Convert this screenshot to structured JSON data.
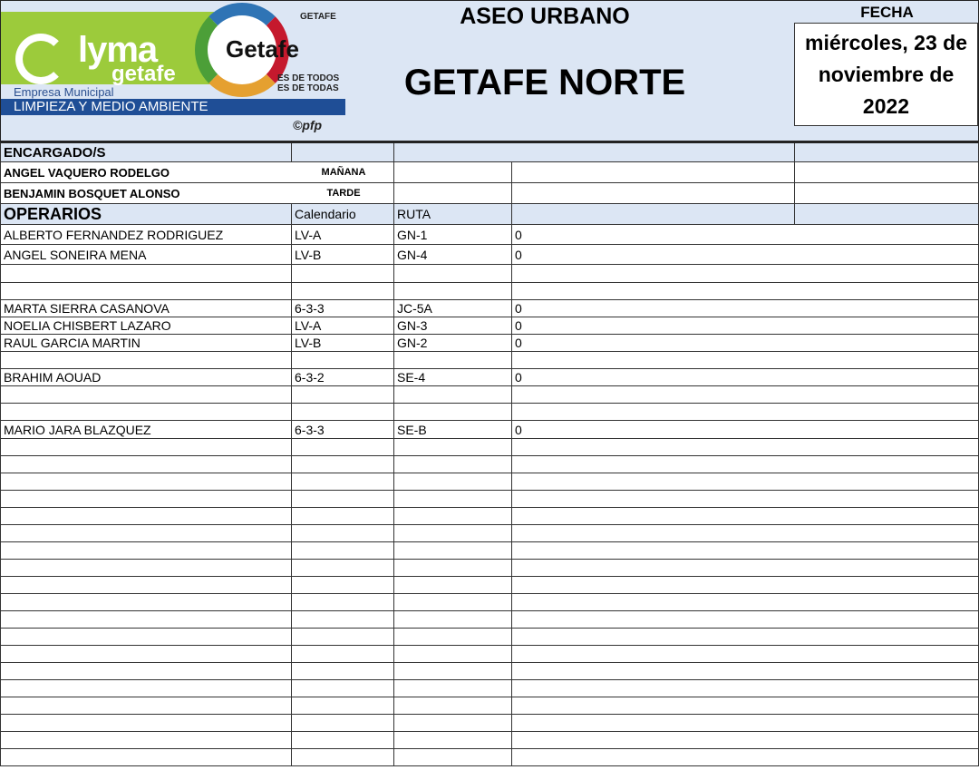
{
  "logo": {
    "brand": "lyma",
    "brand_sub": "getafe",
    "partner": "Getafe",
    "ayuntamiento": "GETAFE",
    "slogan1": "ES DE TODOS",
    "slogan2": "ES DE TODAS",
    "empresa": "Empresa Municipal",
    "division": "LIMPIEZA Y MEDIO AMBIENTE",
    "credit": "©pfp"
  },
  "header": {
    "service": "ASEO URBANO",
    "zone": "GETAFE NORTE",
    "date_label": "FECHA",
    "date_line1": "miércoles, 23 de",
    "date_line2": "noviembre de",
    "date_line3": "2022"
  },
  "supervisors": {
    "heading": "ENCARGADO/S",
    "rows": [
      {
        "name": "ANGEL VAQUERO RODELGO",
        "shift": "MAÑANA"
      },
      {
        "name": "BENJAMIN BOSQUET ALONSO",
        "shift": "TARDE"
      }
    ]
  },
  "operators": {
    "heading": "OPERARIOS",
    "col_calendar": "Calendario",
    "col_route": "RUTA",
    "rows": [
      {
        "name": "ALBERTO FERNANDEZ RODRIGUEZ",
        "calendar": "LV-A",
        "route": "GN-1",
        "value": "0"
      },
      {
        "name": "ANGEL SONEIRA MENA",
        "calendar": "LV-B",
        "route": "GN-4",
        "value": "0"
      },
      {
        "name": "",
        "calendar": "",
        "route": "",
        "value": ""
      },
      {
        "name": "",
        "calendar": "",
        "route": "",
        "value": ""
      },
      {
        "name": "MARTA SIERRA CASANOVA",
        "calendar": "6-3-3",
        "route": "JC-5A",
        "value": "0"
      },
      {
        "name": "NOELIA CHISBERT LAZARO",
        "calendar": "LV-A",
        "route": "GN-3",
        "value": "0"
      },
      {
        "name": "RAUL GARCIA MARTIN",
        "calendar": "LV-B",
        "route": "GN-2",
        "value": "0"
      },
      {
        "name": "",
        "calendar": "",
        "route": "",
        "value": ""
      },
      {
        "name": "BRAHIM AOUAD",
        "calendar": "6-3-2",
        "route": "SE-4",
        "value": "0"
      },
      {
        "name": "",
        "calendar": "",
        "route": "",
        "value": ""
      },
      {
        "name": "",
        "calendar": "",
        "route": "",
        "value": ""
      },
      {
        "name": "MARIO JARA BLAZQUEZ",
        "calendar": "6-3-3",
        "route": "SE-B",
        "value": "0"
      }
    ]
  }
}
